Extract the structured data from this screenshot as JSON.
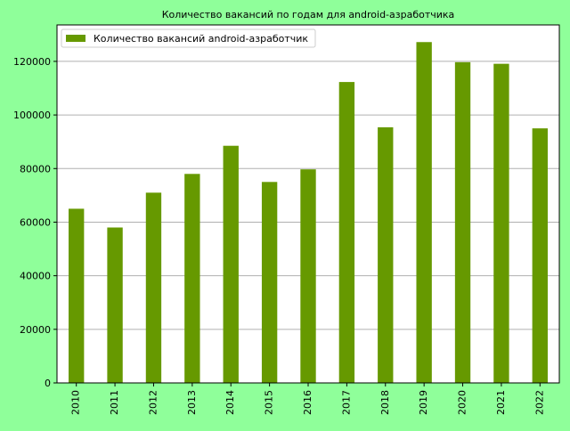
{
  "colors": {
    "background": "#8fff9a",
    "plot_background": "#ffffff",
    "bar": "#669900",
    "grid": "#b0b0b0",
    "axis": "#000000"
  },
  "chart_data": {
    "type": "bar",
    "title": "Количество вакансий по годам для android-азработчика",
    "xlabel": "",
    "ylabel": "",
    "categories": [
      "2010",
      "2011",
      "2012",
      "2013",
      "2014",
      "2015",
      "2016",
      "2017",
      "2018",
      "2019",
      "2020",
      "2021",
      "2022"
    ],
    "series": [
      {
        "name": "Количество вакансий android-азработчик",
        "values": [
          65000,
          58000,
          71000,
          78000,
          88500,
          75000,
          79700,
          112300,
          95400,
          127200,
          119700,
          119100,
          95000
        ]
      }
    ],
    "ylim": [
      0,
      133600
    ],
    "yticks": [
      0,
      20000,
      40000,
      60000,
      80000,
      100000,
      120000
    ],
    "grid": "horizontal",
    "legend_position": "top-left",
    "x_tick_rotation": "vertical"
  }
}
